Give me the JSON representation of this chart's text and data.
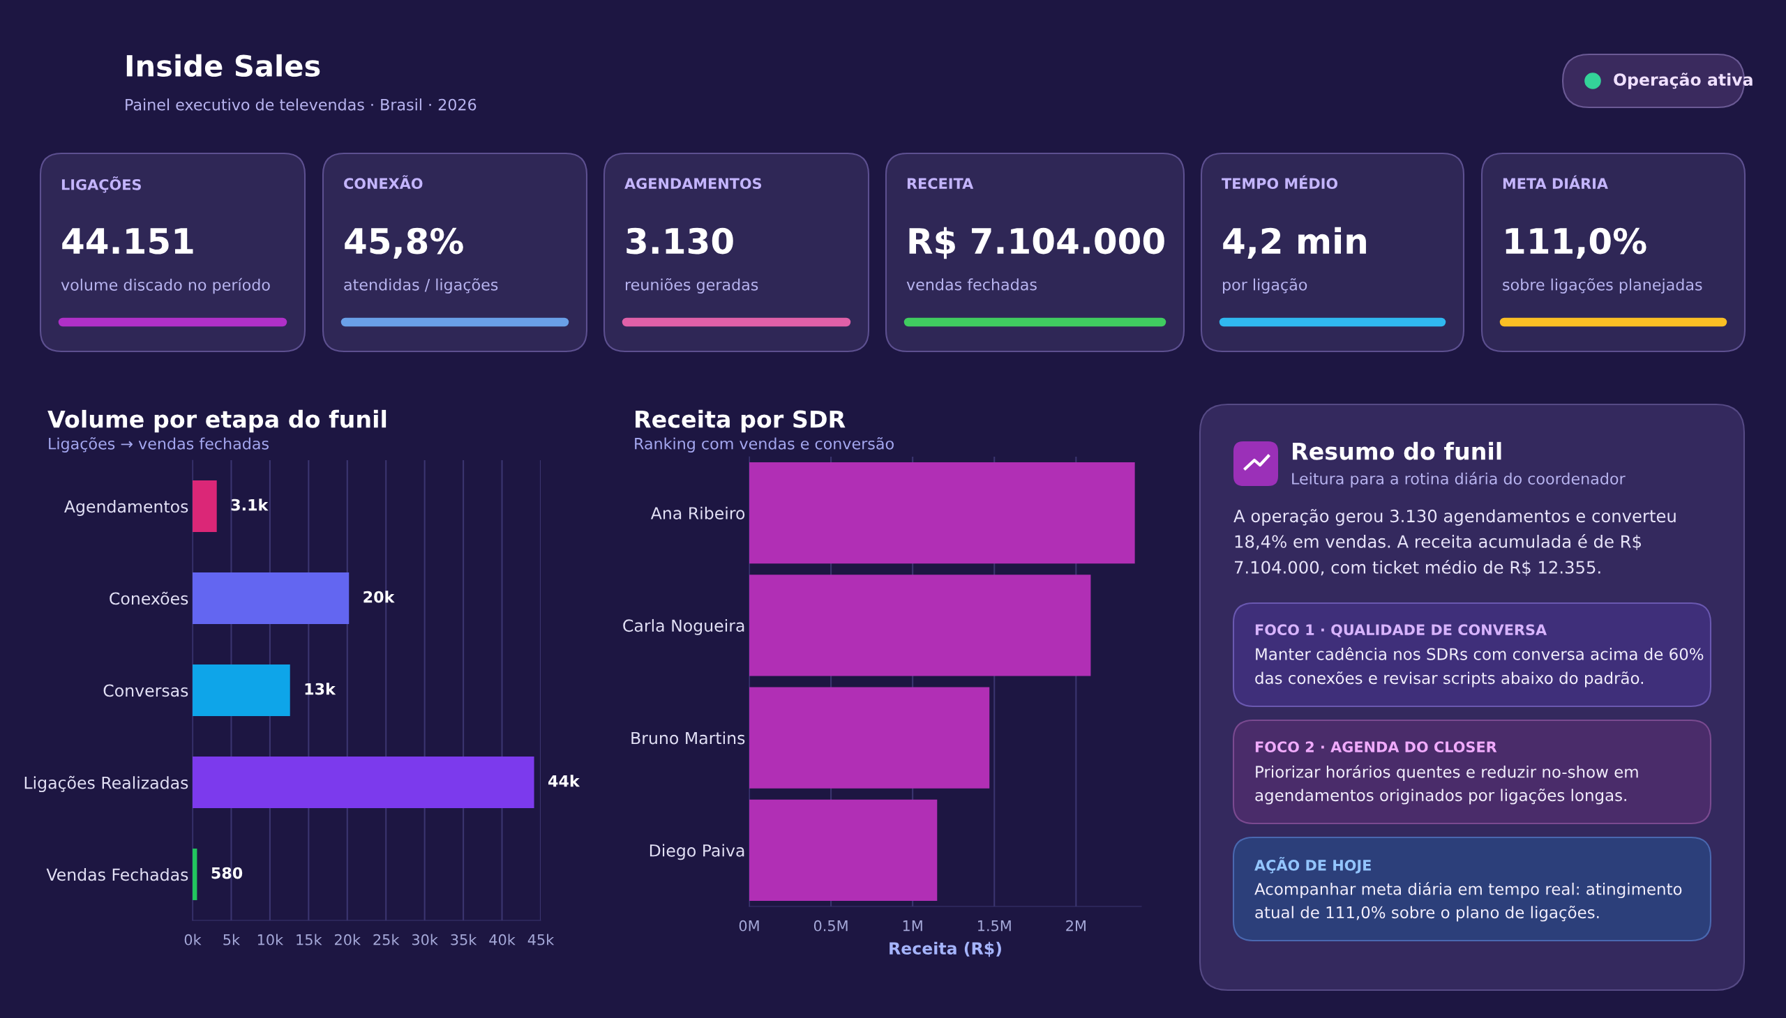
{
  "chart_data": [
    {
      "type": "other",
      "title": "Inside Sales",
      "subtitle": "Painel executivo de televendas · Brasil · 2026",
      "annotations": [
        "Operação ativa"
      ]
    },
    {
      "type": "other",
      "annotations": [
        "LIGAÇÕES",
        "44.151",
        "volume discado no período",
        "CONEXÃO",
        "45,8%",
        "atendidas / ligações",
        "AGENDAMENTOS",
        "3.130",
        "reuniões geradas",
        "RECEITA",
        "R$ 7.104.000",
        "vendas fechadas",
        "TEMPO MÉDIO",
        "4,2 min",
        "por ligação",
        "META DIÁRIA",
        "111,0%",
        "sobre ligações planejadas"
      ]
    },
    {
      "type": "bar",
      "orientation": "horizontal",
      "title": "Volume por etapa do funil",
      "subtitle": "Ligações → vendas fechadas",
      "categories": [
        "Agendamentos",
        "Conexões",
        "Conversas",
        "Ligações Realizadas",
        "Vendas Fechadas"
      ],
      "values": [
        3130,
        20220,
        12600,
        44151,
        580
      ],
      "colors": [
        "#db2777",
        "#6366f1",
        "#0ea5e9",
        "#7c3aed",
        "#22c55e"
      ],
      "value_labels": [
        "3.1k",
        "20k",
        "13k",
        "44k",
        "580"
      ],
      "xlim": [
        0,
        45000
      ],
      "xticks": [
        {
          "value": 0,
          "label": "0k"
        },
        {
          "value": 5000,
          "label": "5k"
        },
        {
          "value": 10000,
          "label": "10k"
        },
        {
          "value": 15000,
          "label": "15k"
        },
        {
          "value": 20000,
          "label": "20k"
        },
        {
          "value": 25000,
          "label": "25k"
        },
        {
          "value": 30000,
          "label": "30k"
        },
        {
          "value": 35000,
          "label": "35k"
        },
        {
          "value": 40000,
          "label": "40k"
        },
        {
          "value": 45000,
          "label": "45k"
        }
      ],
      "grid": "x"
    },
    {
      "type": "bar",
      "orientation": "horizontal",
      "title": "Receita por SDR",
      "subtitle": "Ranking com vendas e conversão",
      "xlabel": "Receita (R$)",
      "categories": [
        "Ana Ribeiro",
        "Carla Nogueira",
        "Bruno Martins",
        "Diego Paiva"
      ],
      "values": [
        2360000,
        2090000,
        1470000,
        1150000
      ],
      "color": "#b12fb5",
      "xlim": [
        0,
        2400000
      ],
      "xticks": [
        {
          "value": 0,
          "label": "0M"
        },
        {
          "value": 500000,
          "label": "0.5M"
        },
        {
          "value": 1000000,
          "label": "1M"
        },
        {
          "value": 1500000,
          "label": "1.5M"
        },
        {
          "value": 2000000,
          "label": "2M"
        }
      ],
      "grid": "x"
    },
    {
      "type": "other",
      "title": "Resumo do funil",
      "subtitle": "Leitura para a rotina diária do coordenador",
      "annotations": [
        "A operação gerou 3.130 agendamentos e converteu 18,4% em vendas. A receita acumulada é de R$ 7.104.000, com ticket médio de R$ 12.355.",
        "FOCO 1 · QUALIDADE DE CONVERSA",
        "Manter cadência nos SDRs com conversa acima de 60% das conexões e revisar scripts abaixo do padrão.",
        "FOCO 2 · AGENDA DO CLOSER",
        "Priorizar horários quentes e reduzir no-show em agendamentos originados por ligações longas.",
        "AÇÃO DE HOJE",
        "Acompanhar meta diária em tempo real: atingimento atual de 111,0% sobre o plano de ligações."
      ]
    }
  ]
}
